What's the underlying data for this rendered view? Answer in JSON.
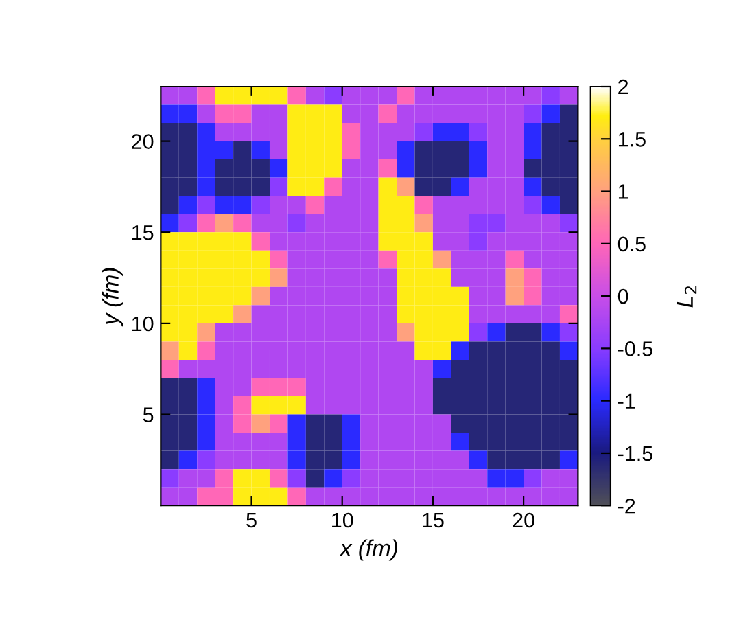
{
  "chart_data": {
    "type": "heatmap",
    "xlabel": "x (fm)",
    "ylabel": "y (fm)",
    "clabel": "L$_{2}$",
    "x": [
      0.5,
      1.5,
      2.5,
      3.5,
      4.5,
      5.5,
      6.5,
      7.5,
      8.5,
      9.5,
      10.5,
      11.5,
      12.5,
      13.5,
      14.5,
      15.5,
      16.5,
      17.5,
      18.5,
      19.5,
      20.5,
      21.5,
      22.5
    ],
    "y": [
      22.5,
      21.5,
      20.5,
      19.5,
      18.5,
      17.5,
      16.5,
      15.5,
      14.5,
      13.5,
      12.5,
      11.5,
      10.5,
      9.5,
      8.5,
      7.5,
      6.5,
      5.5,
      4.5,
      3.5,
      2.5,
      1.5,
      0.5
    ],
    "xlim": [
      0,
      23
    ],
    "ylim": [
      0,
      23
    ],
    "xticks": [
      5,
      10,
      15,
      20
    ],
    "yticks": [
      5,
      10,
      15,
      20
    ],
    "clim": [
      -2,
      2
    ],
    "cticks": [
      -2,
      -1.5,
      -1,
      -0.5,
      0,
      0.5,
      1,
      1.5,
      2
    ],
    "grid": false,
    "cells": [
      [
        -0.2,
        -0.2,
        0.5,
        1.7,
        1.7,
        1.7,
        1.7,
        0.5,
        -0.2,
        -0.5,
        -0.2,
        -0.2,
        -0.2,
        0.5,
        -0.2,
        -0.2,
        -0.2,
        -0.2,
        -0.2,
        -0.2,
        -0.2,
        -0.5,
        -0.2
      ],
      [
        -1,
        -1,
        -0.2,
        0.5,
        0.5,
        -0.2,
        -0.2,
        1.7,
        1.7,
        1.7,
        -0.2,
        -0.2,
        0.5,
        -0.2,
        -0.2,
        -0.2,
        -0.2,
        -0.2,
        -0.2,
        -0.2,
        -0.5,
        -1,
        -1.6
      ],
      [
        -1.6,
        -1.6,
        -1,
        -0.2,
        -0.2,
        -0.2,
        -0.2,
        1.7,
        1.7,
        1.7,
        0.5,
        -0.2,
        -0.2,
        -0.2,
        -0.5,
        -1,
        -1,
        -0.5,
        -0.2,
        -0.2,
        -1,
        -1.6,
        -1.6
      ],
      [
        -1.6,
        -1.6,
        -1,
        -1,
        -1.6,
        -1,
        -0.2,
        1.7,
        1.7,
        1.7,
        0.5,
        -0.2,
        -0.2,
        -1,
        -1.6,
        -1.6,
        -1.6,
        -1,
        -0.2,
        -0.2,
        -1,
        -1.6,
        -1.6
      ],
      [
        -1.6,
        -1.6,
        -1,
        -1.6,
        -1.6,
        -1.6,
        -1,
        1.7,
        1.7,
        1.7,
        -0.2,
        -0.2,
        0.5,
        -1,
        -1.6,
        -1.6,
        -1.6,
        -1,
        -0.2,
        -0.2,
        -1.6,
        -1.6,
        -1.6
      ],
      [
        -1.6,
        -1.6,
        -1,
        -1.6,
        -1.6,
        -1.6,
        -0.5,
        1.7,
        1.7,
        0.5,
        -0.2,
        -0.2,
        1.7,
        1,
        -1.6,
        -1.6,
        -1,
        -0.2,
        -0.2,
        -0.2,
        -1,
        -1.6,
        -1.6
      ],
      [
        -1.6,
        -1,
        -0.5,
        -1,
        -1,
        -0.5,
        -0.2,
        -0.2,
        0.5,
        -0.2,
        -0.2,
        -0.2,
        1.7,
        1.7,
        0.5,
        -0.2,
        -0.2,
        -0.2,
        -0.2,
        -0.2,
        -0.5,
        -1,
        -1.6
      ],
      [
        -1,
        -0.5,
        0.5,
        1,
        0.5,
        -0.2,
        -0.2,
        -0.5,
        -0.2,
        -0.2,
        -0.2,
        -0.2,
        1.7,
        1.7,
        1,
        -0.2,
        -0.2,
        -0.5,
        -0.5,
        -0.2,
        -0.2,
        -0.2,
        -0.5
      ],
      [
        1.7,
        1.7,
        1.7,
        1.7,
        1.7,
        0.5,
        -0.2,
        -0.2,
        -0.2,
        -0.2,
        -0.2,
        -0.2,
        1.7,
        1.7,
        1.7,
        -0.2,
        -0.2,
        -0.5,
        -0.2,
        -0.2,
        -0.2,
        -0.2,
        -0.2
      ],
      [
        1.7,
        1.7,
        1.7,
        1.7,
        1.7,
        1.7,
        0.5,
        -0.2,
        -0.2,
        -0.2,
        -0.2,
        -0.2,
        0.5,
        1.7,
        1.7,
        1,
        -0.2,
        -0.2,
        -0.2,
        0.5,
        -0.2,
        -0.2,
        -0.2
      ],
      [
        1.7,
        1.7,
        1.7,
        1.7,
        1.7,
        1.7,
        1,
        -0.2,
        -0.2,
        -0.2,
        -0.2,
        -0.2,
        -0.2,
        1.7,
        1.7,
        1.7,
        -0.2,
        -0.2,
        -0.2,
        1,
        0.5,
        -0.2,
        -0.2
      ],
      [
        1.7,
        1.7,
        1.7,
        1.7,
        1.7,
        1,
        -0.2,
        -0.2,
        -0.2,
        -0.2,
        -0.2,
        -0.2,
        -0.2,
        1.7,
        1.7,
        1.7,
        1.7,
        -0.2,
        -0.2,
        1,
        0.5,
        -0.2,
        -0.2
      ],
      [
        1.7,
        1.7,
        1.7,
        1.7,
        1,
        -0.2,
        -0.2,
        -0.2,
        -0.2,
        -0.2,
        -0.2,
        -0.2,
        -0.2,
        1.7,
        1.7,
        1.7,
        1.7,
        -0.2,
        -0.2,
        -0.2,
        -0.2,
        -0.2,
        0.5
      ],
      [
        1.7,
        1.7,
        1,
        -0.2,
        -0.2,
        -0.2,
        -0.2,
        -0.2,
        -0.2,
        -0.2,
        -0.2,
        -0.2,
        -0.2,
        1,
        1.7,
        1.7,
        1.7,
        -0.5,
        -1,
        -1.6,
        -1.6,
        -1,
        -0.5
      ],
      [
        1,
        1.7,
        0.5,
        -0.2,
        -0.2,
        -0.2,
        -0.2,
        -0.2,
        -0.2,
        -0.2,
        -0.2,
        -0.2,
        -0.2,
        -0.2,
        1.7,
        1.7,
        -1,
        -1.6,
        -1.6,
        -1.6,
        -1.6,
        -1.6,
        -1
      ],
      [
        0.5,
        -0.2,
        -0.2,
        -0.2,
        -0.2,
        -0.2,
        -0.2,
        -0.2,
        -0.2,
        -0.2,
        -0.2,
        -0.2,
        -0.2,
        -0.2,
        -0.2,
        -1,
        -1.6,
        -1.6,
        -1.6,
        -1.6,
        -1.6,
        -1.6,
        -1.6
      ],
      [
        -1.6,
        -1.6,
        -1,
        -0.2,
        -0.2,
        0.5,
        0.5,
        0.5,
        -0.2,
        -0.2,
        -0.2,
        -0.2,
        -0.2,
        -0.2,
        -0.2,
        -1.6,
        -1.6,
        -1.6,
        -1.6,
        -1.6,
        -1.6,
        -1.6,
        -1.6
      ],
      [
        -1.6,
        -1.6,
        -1,
        -0.2,
        0.5,
        1.7,
        1.7,
        1.7,
        -0.2,
        -0.2,
        -0.2,
        -0.2,
        -0.2,
        -0.2,
        -0.2,
        -1.6,
        -1.6,
        -1.6,
        -1.6,
        -1.6,
        -1.6,
        -1.6,
        -1.6
      ],
      [
        -1.6,
        -1.6,
        -1,
        -0.2,
        0.5,
        1,
        0.5,
        -1,
        -1.6,
        -1.6,
        -1,
        -0.2,
        -0.2,
        -0.2,
        -0.2,
        -0.2,
        -1.6,
        -1.6,
        -1.6,
        -1.6,
        -1.6,
        -1.6,
        -1.6
      ],
      [
        -1.6,
        -1.6,
        -1,
        -0.2,
        -0.2,
        -0.2,
        -0.2,
        -1,
        -1.6,
        -1.6,
        -1,
        -0.2,
        -0.2,
        -0.2,
        -0.2,
        -0.2,
        -1,
        -1.6,
        -1.6,
        -1.6,
        -1.6,
        -1.6,
        -1.6
      ],
      [
        -1.6,
        -1,
        -0.5,
        -0.2,
        -0.2,
        -0.2,
        -0.2,
        -1,
        -1.6,
        -1.6,
        -1,
        -0.2,
        -0.2,
        -0.2,
        -0.2,
        -0.2,
        -0.2,
        -1,
        -1.6,
        -1.6,
        -1.6,
        -1.6,
        -1
      ],
      [
        -0.5,
        -0.2,
        -0.2,
        0.5,
        1.7,
        1.7,
        0.5,
        -0.5,
        -1.6,
        -1,
        -0.5,
        -0.2,
        -0.2,
        -0.2,
        -0.2,
        -0.2,
        -0.2,
        -0.2,
        -1,
        -1,
        -0.5,
        -0.2,
        -0.2
      ],
      [
        -0.2,
        -0.2,
        0.5,
        0.5,
        1.7,
        1.7,
        1.7,
        0.5,
        -0.2,
        -0.2,
        -0.2,
        -0.2,
        -0.2,
        -0.2,
        -0.2,
        -0.2,
        -0.2,
        -0.2,
        -0.2,
        -0.2,
        -0.2,
        -0.2,
        -0.2
      ]
    ]
  }
}
